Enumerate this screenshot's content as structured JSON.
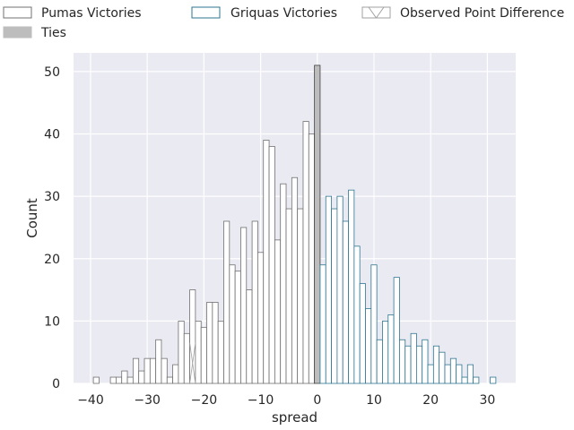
{
  "chart_data": {
    "type": "bar",
    "title": "",
    "xlabel": "spread",
    "ylabel": "Count",
    "xlim": [
      -43,
      35
    ],
    "ylim": [
      0,
      53
    ],
    "xticks": [
      -40,
      -30,
      -20,
      -10,
      0,
      10,
      20,
      30
    ],
    "yticks": [
      0,
      10,
      20,
      30,
      40,
      50
    ],
    "grid": true,
    "legend_position": "top",
    "colors": {
      "background": "#eaeaf2",
      "grid": "#ffffff",
      "pumas_edge": "#707070",
      "griquas_edge": "#2f7591",
      "ties_fill": "#bdbdbd",
      "observed_edge": "#a0a0a0",
      "bar_fill": "#ffffff"
    },
    "legend": [
      {
        "label": "Pumas Victories",
        "style": "pumas"
      },
      {
        "label": "Griquas Victories",
        "style": "griquas"
      },
      {
        "label": "Observed Point Difference",
        "style": "observed"
      },
      {
        "label": "Ties",
        "style": "ties"
      }
    ],
    "series": [
      {
        "name": "Pumas Victories",
        "points": [
          [
            -39,
            1
          ],
          [
            -36,
            1
          ],
          [
            -35,
            1
          ],
          [
            -34,
            2
          ],
          [
            -33,
            1
          ],
          [
            -32,
            4
          ],
          [
            -31,
            2
          ],
          [
            -30,
            4
          ],
          [
            -29,
            4
          ],
          [
            -28,
            7
          ],
          [
            -27,
            4
          ],
          [
            -26,
            1
          ],
          [
            -25,
            3
          ],
          [
            -24,
            10
          ],
          [
            -23,
            8
          ],
          [
            -22,
            15
          ],
          [
            -21,
            10
          ],
          [
            -20,
            9
          ],
          [
            -19,
            13
          ],
          [
            -18,
            13
          ],
          [
            -17,
            10
          ],
          [
            -16,
            26
          ],
          [
            -15,
            19
          ],
          [
            -14,
            18
          ],
          [
            -13,
            25
          ],
          [
            -12,
            15
          ],
          [
            -11,
            26
          ],
          [
            -10,
            21
          ],
          [
            -9,
            39
          ],
          [
            -8,
            38
          ],
          [
            -7,
            23
          ],
          [
            -6,
            32
          ],
          [
            -5,
            28
          ],
          [
            -4,
            33
          ],
          [
            -3,
            28
          ],
          [
            -2,
            42
          ],
          [
            -1,
            40
          ]
        ]
      },
      {
        "name": "Ties",
        "points": [
          [
            0,
            51
          ]
        ]
      },
      {
        "name": "Griquas Victories",
        "points": [
          [
            1,
            19
          ],
          [
            2,
            30
          ],
          [
            3,
            28
          ],
          [
            4,
            30
          ],
          [
            5,
            26
          ],
          [
            6,
            31
          ],
          [
            7,
            22
          ],
          [
            8,
            16
          ],
          [
            9,
            12
          ],
          [
            10,
            19
          ],
          [
            11,
            7
          ],
          [
            12,
            10
          ],
          [
            13,
            11
          ],
          [
            14,
            17
          ],
          [
            15,
            7
          ],
          [
            16,
            6
          ],
          [
            17,
            8
          ],
          [
            18,
            6
          ],
          [
            19,
            7
          ],
          [
            20,
            3
          ],
          [
            21,
            6
          ],
          [
            22,
            5
          ],
          [
            23,
            3
          ],
          [
            24,
            4
          ],
          [
            25,
            3
          ],
          [
            26,
            1
          ],
          [
            27,
            3
          ],
          [
            28,
            1
          ],
          [
            31,
            1
          ]
        ]
      }
    ]
  }
}
